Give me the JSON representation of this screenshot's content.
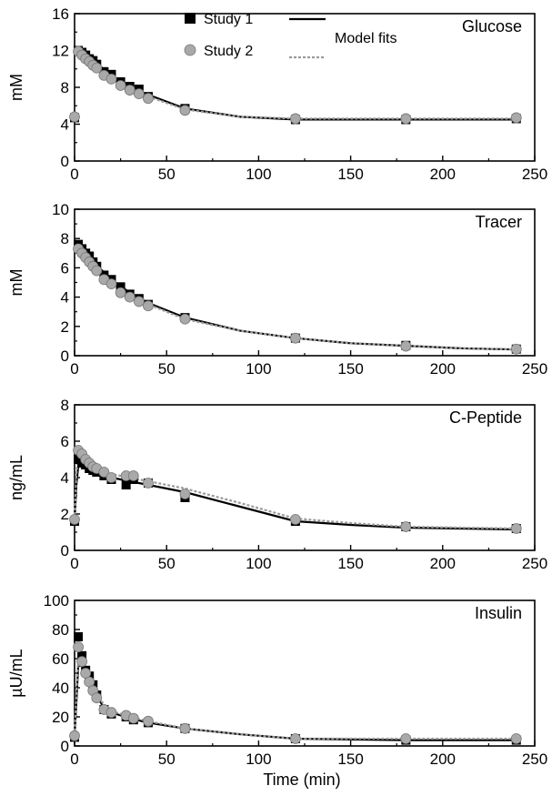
{
  "legend": {
    "study1": "Study 1",
    "study2": "Study 2",
    "model": "Model fits"
  },
  "colors": {
    "study1": "#000000",
    "study2": "#a9a9a9",
    "study2_fit": "#9a9a9a"
  },
  "chart_data": [
    {
      "type": "line",
      "title": "Glucose",
      "ylabel": "mM",
      "xlabel": "",
      "xlim": [
        0,
        250
      ],
      "ylim": [
        0,
        16
      ],
      "xticks": [
        0,
        50,
        100,
        150,
        200,
        250
      ],
      "yticks": [
        0,
        4,
        8,
        12,
        16
      ],
      "series": [
        {
          "name": "Study 1",
          "style": "square",
          "x": [
            0,
            2,
            4,
            6,
            8,
            10,
            12,
            16,
            20,
            25,
            30,
            35,
            40,
            60,
            120,
            180,
            240
          ],
          "y": [
            4.7,
            12.0,
            11.8,
            11.5,
            11.1,
            10.9,
            10.5,
            9.7,
            9.4,
            8.6,
            8.1,
            7.8,
            7.0,
            5.7,
            4.5,
            4.5,
            4.6
          ]
        },
        {
          "name": "Study 2",
          "style": "circle",
          "x": [
            0,
            2,
            4,
            6,
            8,
            10,
            12,
            16,
            20,
            25,
            30,
            35,
            40,
            60,
            120,
            180,
            240
          ],
          "y": [
            4.8,
            11.9,
            11.5,
            11.1,
            10.8,
            10.4,
            10.1,
            9.3,
            8.9,
            8.2,
            7.7,
            7.3,
            6.8,
            5.5,
            4.6,
            4.6,
            4.7
          ]
        },
        {
          "name": "Study 1 fit",
          "style": "fit-solid",
          "x": [
            1,
            5,
            10,
            15,
            20,
            30,
            40,
            60,
            90,
            120,
            180,
            240
          ],
          "y": [
            12.2,
            11.6,
            10.9,
            10.1,
            9.3,
            8.1,
            7.2,
            5.7,
            4.8,
            4.5,
            4.5,
            4.5
          ]
        },
        {
          "name": "Study 2 fit",
          "style": "fit-gray",
          "x": [
            1,
            5,
            10,
            15,
            20,
            30,
            40,
            60,
            90,
            120,
            180,
            240
          ],
          "y": [
            12.0,
            11.3,
            10.5,
            9.7,
            8.9,
            7.8,
            7.0,
            5.6,
            4.8,
            4.6,
            4.6,
            4.6
          ]
        }
      ]
    },
    {
      "type": "line",
      "title": "Tracer",
      "ylabel": "mM",
      "xlabel": "",
      "xlim": [
        0,
        250
      ],
      "ylim": [
        0,
        10
      ],
      "xticks": [
        0,
        50,
        100,
        150,
        200,
        250
      ],
      "yticks": [
        0,
        2,
        4,
        6,
        8,
        10
      ],
      "series": [
        {
          "name": "Study 1",
          "style": "square",
          "x": [
            2,
            4,
            6,
            8,
            10,
            12,
            16,
            20,
            25,
            30,
            35,
            40,
            60,
            120,
            180,
            240
          ],
          "y": [
            7.6,
            7.3,
            7.0,
            6.8,
            6.4,
            6.1,
            5.5,
            5.2,
            4.7,
            4.2,
            3.9,
            3.5,
            2.6,
            1.2,
            0.7,
            0.45
          ]
        },
        {
          "name": "Study 2",
          "style": "circle",
          "x": [
            2,
            4,
            6,
            8,
            10,
            12,
            16,
            20,
            25,
            30,
            35,
            40,
            60,
            120,
            180,
            240
          ],
          "y": [
            7.3,
            7.0,
            6.7,
            6.4,
            6.1,
            5.8,
            5.2,
            4.9,
            4.3,
            4.0,
            3.7,
            3.4,
            2.5,
            1.2,
            0.65,
            0.45
          ]
        },
        {
          "name": "Study 1 fit",
          "style": "fit-solid",
          "x": [
            1,
            5,
            10,
            15,
            20,
            30,
            40,
            60,
            90,
            120,
            150,
            180,
            210,
            240
          ],
          "y": [
            7.8,
            7.2,
            6.5,
            5.8,
            5.2,
            4.3,
            3.6,
            2.6,
            1.7,
            1.2,
            0.85,
            0.68,
            0.5,
            0.42
          ]
        },
        {
          "name": "Study 2 fit",
          "style": "fit-gray",
          "x": [
            1,
            5,
            10,
            15,
            20,
            30,
            40,
            60,
            90,
            120,
            150,
            180,
            210,
            240
          ],
          "y": [
            7.5,
            6.9,
            6.2,
            5.5,
            5.0,
            4.1,
            3.5,
            2.5,
            1.7,
            1.2,
            0.85,
            0.68,
            0.5,
            0.42
          ]
        }
      ]
    },
    {
      "type": "line",
      "title": "C-Peptide",
      "ylabel": "ng/mL",
      "xlabel": "",
      "xlim": [
        0,
        250
      ],
      "ylim": [
        0,
        8
      ],
      "xticks": [
        0,
        50,
        100,
        150,
        200,
        250
      ],
      "yticks": [
        0,
        2,
        4,
        6,
        8
      ],
      "series": [
        {
          "name": "Study 1",
          "style": "square",
          "x": [
            0,
            2,
            4,
            6,
            8,
            10,
            12,
            16,
            20,
            28,
            32,
            40,
            60,
            120,
            180,
            240
          ],
          "y": [
            1.6,
            5.0,
            4.8,
            4.7,
            4.5,
            4.4,
            4.3,
            4.1,
            3.9,
            3.6,
            3.9,
            3.7,
            2.9,
            1.6,
            1.3,
            1.2
          ]
        },
        {
          "name": "Study 2",
          "style": "circle",
          "x": [
            0,
            2,
            4,
            6,
            8,
            10,
            12,
            16,
            20,
            28,
            32,
            40,
            60,
            120,
            180,
            240
          ],
          "y": [
            1.7,
            5.5,
            5.3,
            5.0,
            4.8,
            4.6,
            4.5,
            4.3,
            4.0,
            4.1,
            4.1,
            3.7,
            3.1,
            1.7,
            1.3,
            1.2
          ]
        },
        {
          "name": "Study 1 fit",
          "style": "fit-solid",
          "x": [
            0,
            1,
            2,
            5,
            10,
            20,
            30,
            40,
            60,
            90,
            120,
            150,
            180,
            210,
            240
          ],
          "y": [
            1.6,
            3.6,
            4.6,
            4.7,
            4.4,
            4.0,
            3.8,
            3.6,
            3.2,
            2.4,
            1.6,
            1.4,
            1.25,
            1.2,
            1.15
          ]
        },
        {
          "name": "Study 2 fit",
          "style": "fit-gray",
          "x": [
            0,
            1,
            2,
            5,
            10,
            20,
            30,
            40,
            60,
            90,
            120,
            150,
            180,
            210,
            240
          ],
          "y": [
            1.7,
            4.2,
            5.2,
            5.0,
            4.6,
            4.2,
            4.0,
            3.8,
            3.4,
            2.6,
            1.75,
            1.5,
            1.3,
            1.25,
            1.2
          ]
        }
      ]
    },
    {
      "type": "line",
      "title": "Insulin",
      "ylabel": "µU/mL",
      "xlabel": "Time (min)",
      "xlim": [
        0,
        250
      ],
      "ylim": [
        0,
        100
      ],
      "xticks": [
        0,
        50,
        100,
        150,
        200,
        250
      ],
      "yticks": [
        0,
        20,
        40,
        60,
        80,
        100
      ],
      "series": [
        {
          "name": "Study 1",
          "style": "square",
          "x": [
            0,
            2,
            4,
            6,
            8,
            10,
            12,
            16,
            20,
            28,
            32,
            40,
            60,
            120,
            180,
            240
          ],
          "y": [
            6,
            75,
            62,
            52,
            48,
            42,
            35,
            25,
            22,
            20,
            18,
            16,
            12,
            5,
            4,
            4
          ]
        },
        {
          "name": "Study 2",
          "style": "circle",
          "x": [
            0,
            2,
            4,
            6,
            8,
            10,
            12,
            16,
            20,
            28,
            32,
            40,
            60,
            120,
            180,
            240
          ],
          "y": [
            7,
            68,
            58,
            50,
            44,
            38,
            33,
            25,
            23,
            21,
            19,
            17,
            12,
            5,
            5,
            5
          ]
        },
        {
          "name": "Study 1 fit",
          "style": "fit-solid",
          "x": [
            0,
            1,
            2,
            4,
            6,
            10,
            15,
            20,
            30,
            40,
            60,
            90,
            120,
            180,
            240
          ],
          "y": [
            6,
            30,
            55,
            55,
            50,
            40,
            28,
            23,
            19,
            16,
            12,
            8,
            5,
            4,
            4
          ]
        },
        {
          "name": "Study 2 fit",
          "style": "fit-gray",
          "x": [
            0,
            1,
            2,
            4,
            6,
            10,
            15,
            20,
            30,
            40,
            60,
            90,
            120,
            180,
            240
          ],
          "y": [
            7,
            35,
            62,
            60,
            52,
            42,
            30,
            24,
            20,
            17,
            12,
            8,
            5,
            5,
            5
          ]
        }
      ]
    }
  ]
}
